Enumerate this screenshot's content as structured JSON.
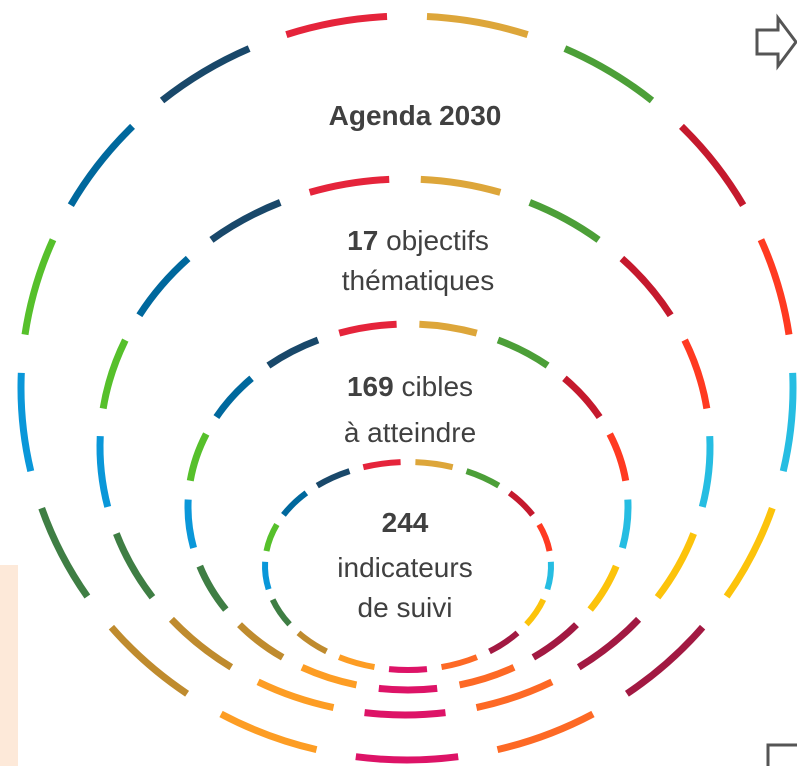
{
  "title": "Agenda 2030",
  "rings": [
    {
      "number": "17",
      "line1": "objectifs",
      "line2": "thématiques"
    },
    {
      "number": "169",
      "line1": "cibles",
      "line2": "à atteindre"
    },
    {
      "number": "244",
      "line1": "indicateurs",
      "line2": "de suivi"
    }
  ],
  "colors": [
    "#e5243b",
    "#dda63a",
    "#4c9f38",
    "#c5192d",
    "#ff3a21",
    "#26bde2",
    "#fcc30b",
    "#a21942",
    "#fd6925",
    "#dd1367",
    "#fd9d24",
    "#bf8b2e",
    "#3f7e44",
    "#0a97d9",
    "#56c02b",
    "#00689d",
    "#19486a"
  ]
}
